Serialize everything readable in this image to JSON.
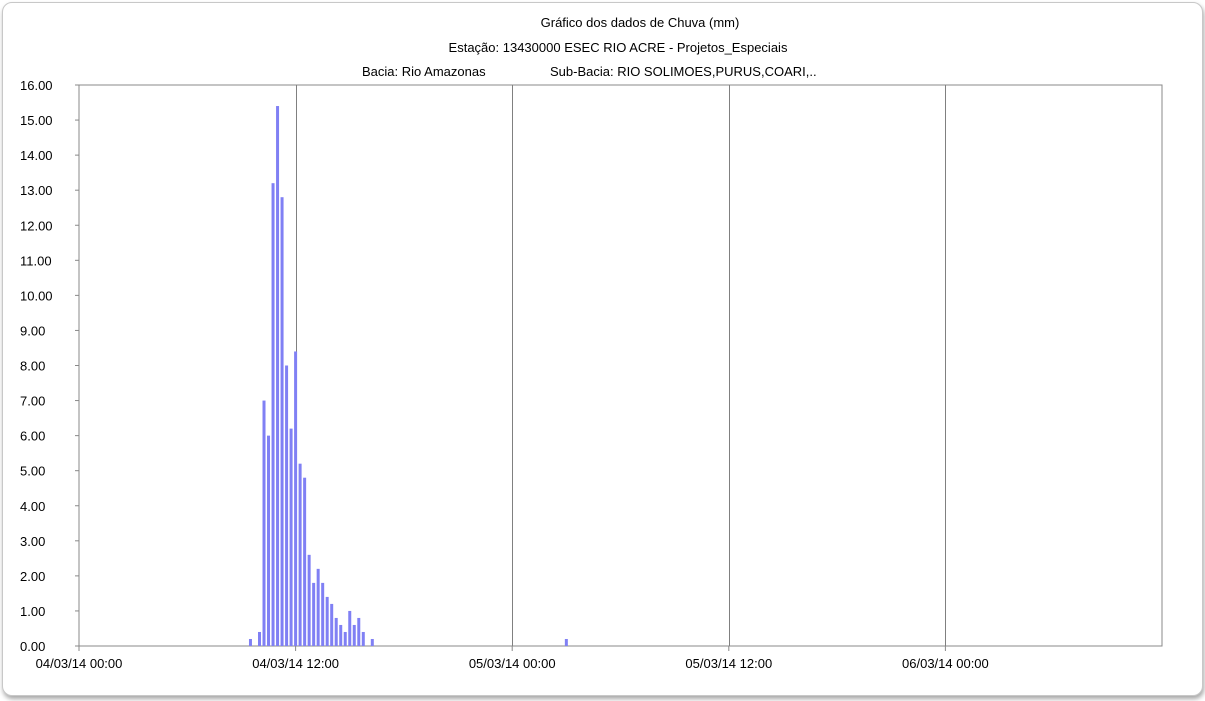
{
  "chart_data": {
    "type": "bar",
    "title": "Gráfico dos dados de Chuva (mm)",
    "subtitle": "Estação: 13430000 ESEC RIO ACRE - Projetos_Especiais",
    "subtitle2_left": "Bacia: Rio Amazonas",
    "subtitle2_right": "Sub-Bacia: RIO SOLIMOES,PURUS,COARI,..",
    "xlabel": "",
    "ylabel": "",
    "ylim": [
      0,
      16
    ],
    "y_ticks": [
      "0.00",
      "1.00",
      "2.00",
      "3.00",
      "4.00",
      "5.00",
      "6.00",
      "7.00",
      "8.00",
      "9.00",
      "10.00",
      "11.00",
      "12.00",
      "13.00",
      "14.00",
      "15.00",
      "16.00"
    ],
    "x_range_hours": [
      0,
      60
    ],
    "x_ticks": [
      {
        "label": "04/03/14 00:00",
        "hour": 0
      },
      {
        "label": "04/03/14 12:00",
        "hour": 12
      },
      {
        "label": "05/03/14 00:00",
        "hour": 24
      },
      {
        "label": "05/03/14 12:00",
        "hour": 36
      },
      {
        "label": "06/03/14 00:00",
        "hour": 48
      }
    ],
    "grid_lines_hours": [
      12,
      24,
      36,
      48
    ],
    "bar_color": "#8080f4",
    "bars": [
      {
        "hour": 9.5,
        "value": 0.2
      },
      {
        "hour": 10.0,
        "value": 0.4
      },
      {
        "hour": 10.25,
        "value": 7.0
      },
      {
        "hour": 10.5,
        "value": 6.0
      },
      {
        "hour": 10.75,
        "value": 13.2
      },
      {
        "hour": 11.0,
        "value": 15.4
      },
      {
        "hour": 11.25,
        "value": 12.8
      },
      {
        "hour": 11.5,
        "value": 8.0
      },
      {
        "hour": 11.75,
        "value": 6.2
      },
      {
        "hour": 12.0,
        "value": 8.4
      },
      {
        "hour": 12.25,
        "value": 5.2
      },
      {
        "hour": 12.5,
        "value": 4.8
      },
      {
        "hour": 12.75,
        "value": 2.6
      },
      {
        "hour": 13.0,
        "value": 1.8
      },
      {
        "hour": 13.25,
        "value": 2.2
      },
      {
        "hour": 13.5,
        "value": 1.8
      },
      {
        "hour": 13.75,
        "value": 1.4
      },
      {
        "hour": 14.0,
        "value": 1.2
      },
      {
        "hour": 14.25,
        "value": 0.8
      },
      {
        "hour": 14.5,
        "value": 0.6
      },
      {
        "hour": 14.75,
        "value": 0.4
      },
      {
        "hour": 15.0,
        "value": 1.0
      },
      {
        "hour": 15.25,
        "value": 0.6
      },
      {
        "hour": 15.5,
        "value": 0.8
      },
      {
        "hour": 15.75,
        "value": 0.4
      },
      {
        "hour": 16.25,
        "value": 0.2
      },
      {
        "hour": 27.0,
        "value": 0.2
      }
    ]
  }
}
